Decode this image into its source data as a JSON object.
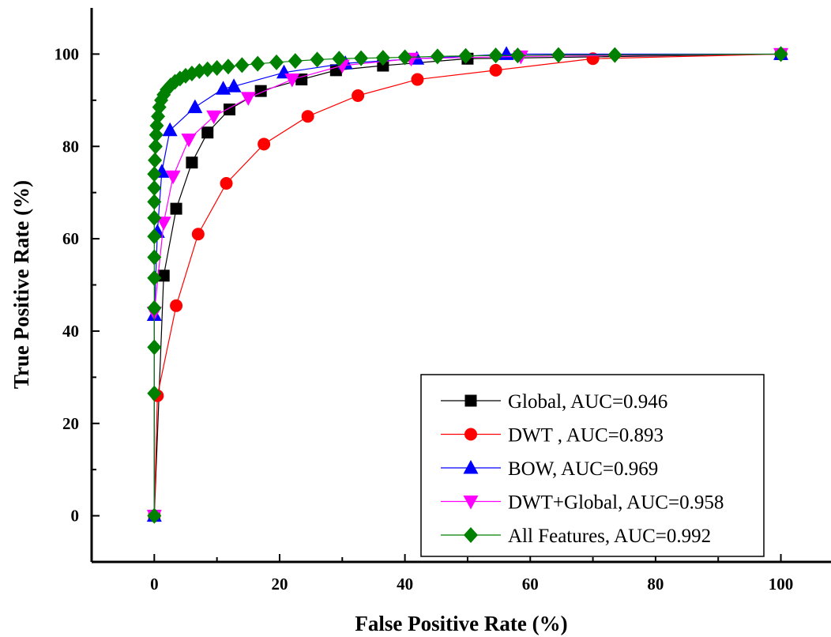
{
  "chart_data": {
    "type": "line",
    "xlabel": "False Positive Rate (%)",
    "ylabel": "True Positive Rate (%)",
    "xlim": [
      -10,
      108
    ],
    "ylim": [
      -10,
      110
    ],
    "xticks": [
      0,
      20,
      40,
      60,
      80,
      100
    ],
    "yticks": [
      0,
      20,
      40,
      60,
      80,
      100
    ],
    "grid": false,
    "legend_position": "bottom-right",
    "series": [
      {
        "name": "Global, AUC=0.946",
        "color": "#000000",
        "marker": "square",
        "x": [
          0,
          1.5,
          3.5,
          6,
          8.5,
          12,
          17,
          23.5,
          29,
          36.5,
          50,
          100
        ],
        "y": [
          0,
          52,
          66.5,
          76.5,
          83,
          88,
          92,
          94.5,
          96.5,
          97.5,
          99,
          100
        ]
      },
      {
        "name": "DWT , AUC=0.893",
        "color": "#ff0000",
        "marker": "circle",
        "x": [
          0,
          0.5,
          3.5,
          7,
          11.5,
          17.5,
          24.5,
          32.5,
          42,
          54.5,
          70,
          100
        ],
        "y": [
          0,
          26,
          45.5,
          61,
          72,
          80.5,
          86.5,
          91,
          94.5,
          96.5,
          99,
          100
        ]
      },
      {
        "name": "BOW, AUC=0.969",
        "color": "#0000ff",
        "marker": "triangle-up",
        "x": [
          0,
          0,
          0.5,
          1.2,
          2.5,
          6.5,
          11,
          12.7,
          20.7,
          30.5,
          41.9,
          56.2,
          100
        ],
        "y": [
          0,
          43.5,
          61.5,
          74.5,
          83.5,
          88.5,
          92.5,
          93,
          96,
          98,
          99,
          100,
          100
        ]
      },
      {
        "name": "DWT+Global, AUC=0.958",
        "color": "#ff00ff",
        "marker": "triangle-down",
        "x": [
          0,
          0,
          1.5,
          3,
          5.5,
          9.5,
          15,
          22,
          30,
          41,
          58.5,
          100
        ],
        "y": [
          0,
          44,
          63.5,
          73.5,
          81.5,
          86.5,
          90.5,
          94.5,
          97.5,
          99,
          99.5,
          100
        ]
      },
      {
        "name": "All Features, AUC=0.992",
        "color": "#008000",
        "marker": "diamond",
        "x": [
          0,
          0,
          0,
          0,
          0,
          0,
          0,
          0,
          0,
          0,
          0,
          0.1,
          0.2,
          0.3,
          0.4,
          0.6,
          0.8,
          1.1,
          1.5,
          2,
          2.6,
          3.3,
          4.1,
          5,
          6,
          7.2,
          8.5,
          10,
          11.8,
          14,
          16.5,
          19.5,
          22.5,
          26,
          29.5,
          33,
          36.5,
          40,
          45.2,
          49.7,
          54.5,
          58,
          64.5,
          73.5,
          100
        ],
        "y": [
          0,
          26.5,
          36.5,
          45,
          51.5,
          56,
          60.5,
          64.5,
          68,
          71,
          74,
          77,
          80,
          82.5,
          84.5,
          86.5,
          88.5,
          90,
          91.2,
          92.3,
          93.2,
          94,
          94.7,
          95.3,
          95.8,
          96.3,
          96.7,
          97,
          97.3,
          97.6,
          97.9,
          98.2,
          98.5,
          98.8,
          99,
          99.1,
          99.2,
          99.3,
          99.5,
          99.6,
          99.7,
          99.7,
          99.8,
          99.8,
          100
        ]
      }
    ]
  }
}
